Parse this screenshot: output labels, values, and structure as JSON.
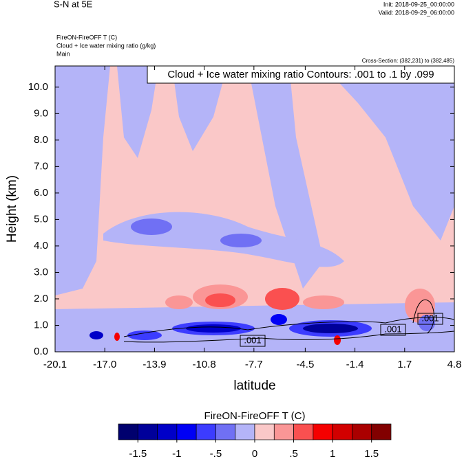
{
  "chart_data": {
    "type": "heatmap",
    "title": "S-N at 5E",
    "init": "Init: 2018-09-25_00:00:00",
    "valid": "Valid: 2018-09-29_06:00:00",
    "field_label": "FireON-FireOFF T   (C)",
    "contour_field_label": "Cloud + Ice water mixing ratio   (g/kg)",
    "domain_label": "Main",
    "cross_section": "Cross-Section: (382,231) to (382,485)",
    "contour_info": "Cloud + Ice water mixing ratio Contours: .001 to .1 by .099",
    "x_label": "latitude",
    "y_label": "Height (km)",
    "xlim": [
      -20.1,
      4.8
    ],
    "xticks": [
      -20.1,
      {
        "value": -17,
        "label": "-17.0"
      },
      -13.9,
      -10.8,
      -7.7,
      -4.5,
      -1.4,
      1.7,
      4.8
    ],
    "ylim": [
      0,
      10.8
    ],
    "yticks": [
      {
        "value": 0,
        "label": "0.0"
      },
      {
        "value": 1,
        "label": "1.0"
      },
      {
        "value": 2,
        "label": "2.0"
      },
      {
        "value": 3,
        "label": "3.0"
      },
      {
        "value": 4,
        "label": "4.0"
      },
      {
        "value": 5,
        "label": "5.0"
      },
      {
        "value": 6,
        "label": "6.0"
      },
      {
        "value": 7,
        "label": "7.0"
      },
      {
        "value": 8,
        "label": "8.0"
      },
      {
        "value": 9,
        "label": "9.0"
      },
      {
        "value": 10,
        "label": "10.0"
      }
    ],
    "contour_labels": [
      ".001",
      ".001",
      ".001"
    ],
    "colorbar": {
      "title": "FireON-FireOFF T  (C)",
      "colors": [
        "#00006e",
        "#00009a",
        "#0000c8",
        "#0000f5",
        "#3c3cff",
        "#7070f4",
        "#b4b4f8",
        "#fac8c8",
        "#fa9696",
        "#fa5050",
        "#f50000",
        "#d20000",
        "#aa0000",
        "#820000"
      ],
      "ticks": [
        -1.5,
        -1,
        {
          "value": -0.5,
          "label": "-.5"
        },
        0,
        {
          "value": 0.5,
          "label": ".5"
        },
        1,
        1.5
      ],
      "lim": [
        -1.75,
        1.75
      ]
    }
  }
}
